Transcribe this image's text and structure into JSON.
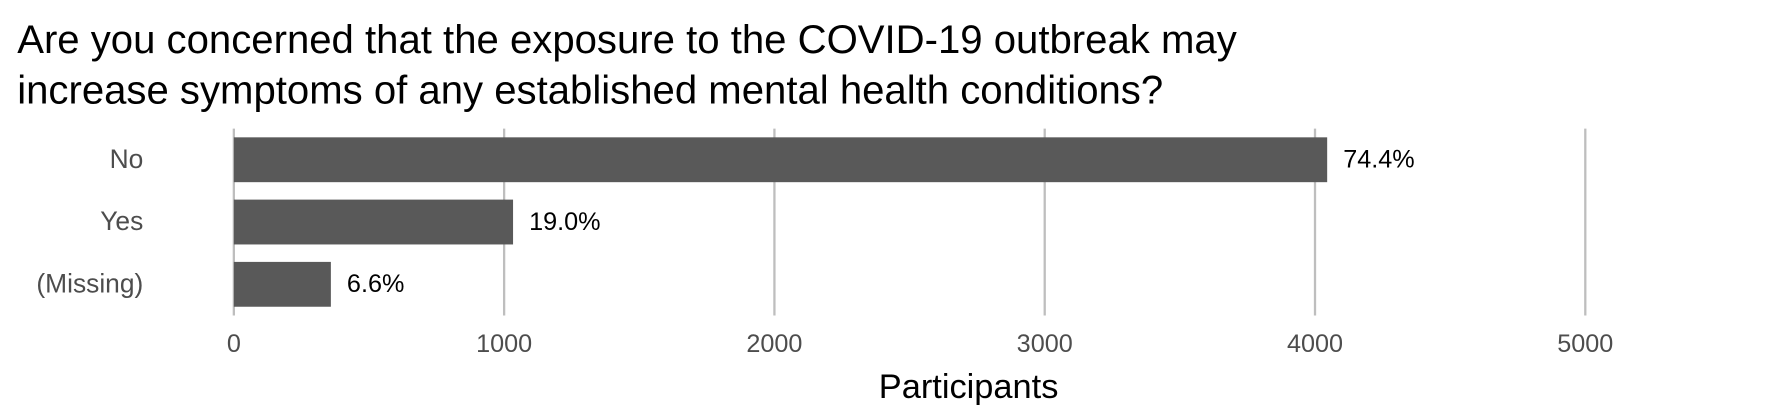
{
  "chart_data": {
    "type": "bar",
    "orientation": "horizontal",
    "title_lines": [
      "Are you concerned that the exposure to the COVID-19 outbreak may",
      "increase symptoms of any established mental health conditions?"
    ],
    "x_label": "Participants",
    "categories": [
      "No",
      "Yes",
      "(Missing)"
    ],
    "values": [
      4045,
      1033,
      359
    ],
    "bar_labels": [
      "74.4%",
      "19.0%",
      "6.6%"
    ],
    "color": "#595959",
    "xlim": [
      0,
      5000
    ],
    "xticks": [
      0,
      1000,
      2000,
      3000,
      4000,
      5000
    ],
    "grid": true
  }
}
